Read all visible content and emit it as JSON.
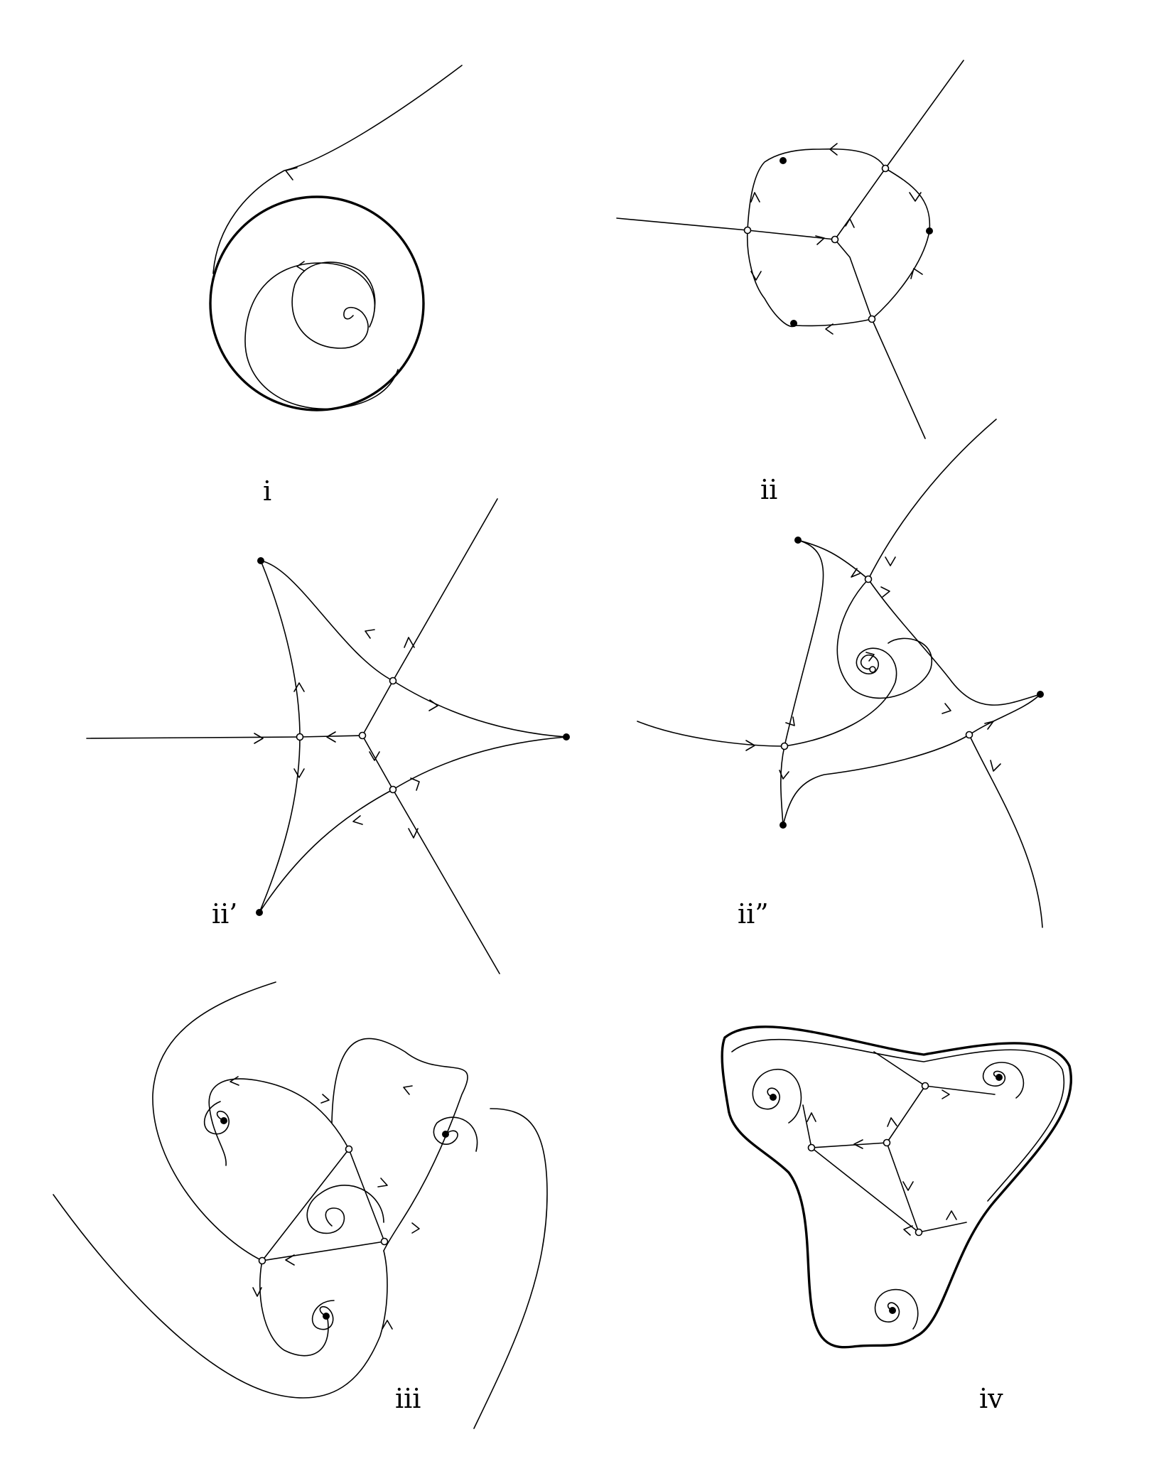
{
  "panels": [
    {
      "id": "i",
      "label": "i"
    },
    {
      "id": "ii",
      "label": "ii"
    },
    {
      "id": "ii_prime",
      "label": "ii’"
    },
    {
      "id": "ii_double_prime",
      "label": "ii”"
    },
    {
      "id": "iii",
      "label": "iii"
    },
    {
      "id": "iv",
      "label": "iv"
    }
  ],
  "colors": {
    "stroke": "#000000",
    "background": "#ffffff",
    "equilibrium_fill": "#000000",
    "saddle_fill": "#ffffff"
  }
}
